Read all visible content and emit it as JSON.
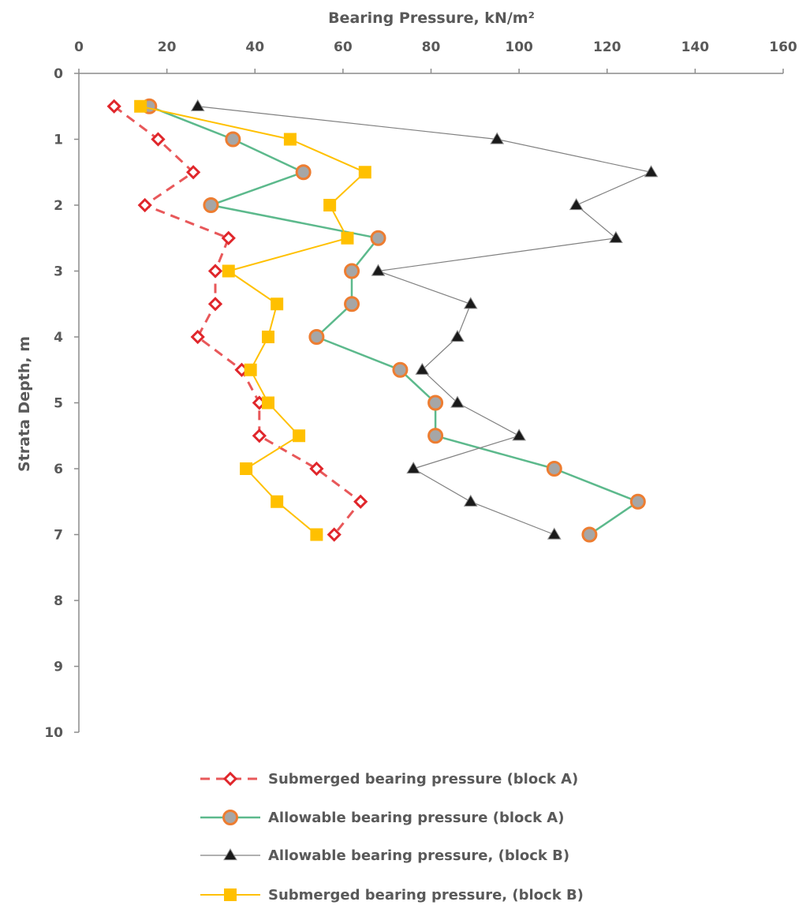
{
  "chart_data": {
    "type": "line",
    "title": "",
    "xlabel": "Bearing Pressure, kN/m²",
    "ylabel": "Strata Depth,  m",
    "x_axis_position": "top",
    "y_axis_inverted": true,
    "xlim": [
      0,
      160
    ],
    "ylim": [
      0,
      10
    ],
    "x_ticks": [
      "0",
      "20",
      "40",
      "60",
      "80",
      "100",
      "120",
      "140",
      "160"
    ],
    "y_ticks": [
      "0",
      "1",
      "2",
      "3",
      "4",
      "5",
      "6",
      "7",
      "8",
      "9",
      "10"
    ],
    "grid": false,
    "legend_position": "bottom",
    "series": [
      {
        "name": "Submerged bearing pressure (block A)",
        "color": "#E8585A",
        "marker": "diamond-open",
        "line": "dashed",
        "points": [
          [
            8,
            0.5
          ],
          [
            18,
            1
          ],
          [
            26,
            1.5
          ],
          [
            15,
            2
          ],
          [
            34,
            2.5
          ],
          [
            31,
            3
          ],
          [
            31,
            3.5
          ],
          [
            27,
            4
          ],
          [
            37,
            4.5
          ],
          [
            41,
            5
          ],
          [
            41,
            5.5
          ],
          [
            54,
            6
          ],
          [
            64,
            6.5
          ],
          [
            58,
            7
          ]
        ]
      },
      {
        "name": "Allowable bearing pressure (block A)",
        "color": "#5CB98C",
        "marker": "circle-grey",
        "line": "solid",
        "points": [
          [
            16,
            0.5
          ],
          [
            35,
            1
          ],
          [
            51,
            1.5
          ],
          [
            30,
            2
          ],
          [
            68,
            2.5
          ],
          [
            62,
            3
          ],
          [
            62,
            3.5
          ],
          [
            54,
            4
          ],
          [
            73,
            4.5
          ],
          [
            81,
            5
          ],
          [
            81,
            5.5
          ],
          [
            108,
            6
          ],
          [
            127,
            6.5
          ],
          [
            116,
            7
          ]
        ]
      },
      {
        "name": "Allowable bearing pressure, (block B)",
        "color": "#808080",
        "marker": "triangle",
        "line": "solid",
        "points": [
          [
            27,
            0.5
          ],
          [
            95,
            1
          ],
          [
            130,
            1.5
          ],
          [
            113,
            2
          ],
          [
            122,
            2.5
          ],
          [
            68,
            3
          ],
          [
            89,
            3.5
          ],
          [
            86,
            4
          ],
          [
            78,
            4.5
          ],
          [
            86,
            5
          ],
          [
            100,
            5.5
          ],
          [
            76,
            6
          ],
          [
            89,
            6.5
          ],
          [
            108,
            7
          ]
        ]
      },
      {
        "name": "Submerged bearing pressure, (block B)",
        "color": "#FFC000",
        "marker": "square",
        "line": "solid",
        "points": [
          [
            14,
            0.5
          ],
          [
            48,
            1
          ],
          [
            65,
            1.5
          ],
          [
            57,
            2
          ],
          [
            61,
            2.5
          ],
          [
            34,
            3
          ],
          [
            45,
            3.5
          ],
          [
            43,
            4
          ],
          [
            39,
            4.5
          ],
          [
            43,
            5
          ],
          [
            50,
            5.5
          ],
          [
            38,
            6
          ],
          [
            45,
            6.5
          ],
          [
            54,
            7
          ]
        ]
      }
    ]
  }
}
